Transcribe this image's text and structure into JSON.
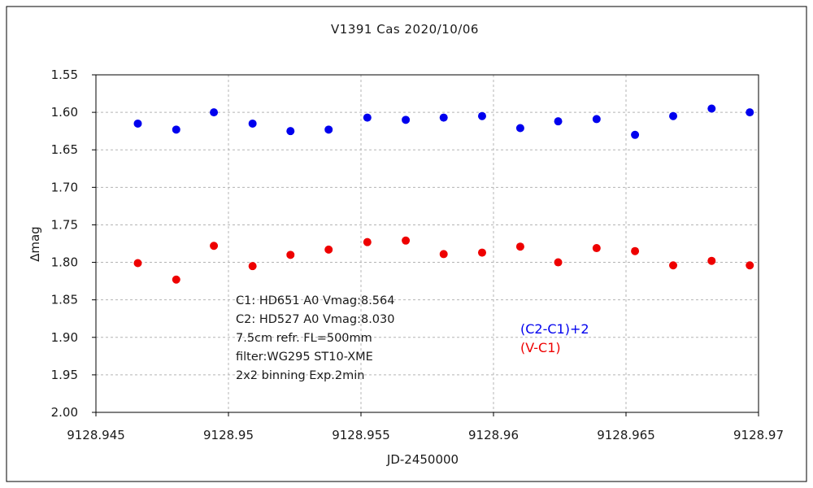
{
  "chart_data": {
    "type": "scatter",
    "title": "V1391 Cas   2020/10/06",
    "xlabel": "JD-2450000",
    "ylabel": "∆mag",
    "xlim": [
      9128.945,
      9128.97
    ],
    "ylim": [
      1.55,
      2.0
    ],
    "y_inverted": true,
    "grid": true,
    "x_ticks": [
      "9128.945",
      "9128.95",
      "9128.955",
      "9128.96",
      "9128.965",
      "9128.97"
    ],
    "x_tick_values": [
      9128.945,
      9128.95,
      9128.955,
      9128.96,
      9128.965,
      9128.97
    ],
    "y_ticks": [
      "1.55",
      "1.60",
      "1.65",
      "1.70",
      "1.75",
      "1.80",
      "1.85",
      "1.90",
      "1.95",
      "2.00"
    ],
    "y_tick_values": [
      1.55,
      1.6,
      1.65,
      1.7,
      1.75,
      1.8,
      1.85,
      1.9,
      1.95,
      2.0
    ],
    "series": [
      {
        "name": "(C2-C1)+2",
        "color": "#0000ee",
        "x": [
          9128.94658,
          9128.94803,
          9128.94945,
          9128.95091,
          9128.95234,
          9128.95378,
          9128.95524,
          9128.95669,
          9128.95812,
          9128.95957,
          9128.96101,
          9128.96244,
          9128.96389,
          9128.96534,
          9128.96678,
          9128.96823,
          9128.96967
        ],
        "y": [
          1.615,
          1.623,
          1.6,
          1.615,
          1.625,
          1.623,
          1.607,
          1.61,
          1.607,
          1.605,
          1.621,
          1.612,
          1.609,
          1.63,
          1.605,
          1.595,
          1.6
        ]
      },
      {
        "name": "(V-C1)",
        "color": "#ee0000",
        "x": [
          9128.94658,
          9128.94803,
          9128.94945,
          9128.95091,
          9128.95234,
          9128.95378,
          9128.95524,
          9128.95669,
          9128.95812,
          9128.95957,
          9128.96101,
          9128.96244,
          9128.96389,
          9128.96534,
          9128.96678,
          9128.96823,
          9128.96967
        ],
        "y": [
          1.801,
          1.823,
          1.778,
          1.805,
          1.79,
          1.783,
          1.773,
          1.771,
          1.789,
          1.787,
          1.779,
          1.8,
          1.781,
          1.785,
          1.804,
          1.798,
          1.804
        ]
      }
    ],
    "annotations": [
      "C1: HD651  A0  Vmag:8.564",
      "C2: HD527  A0   Vmag:8.030",
      "7.5cm refr. FL=500mm",
      "filter:WG295  ST10-XME",
      "2x2 binning  Exp.2min"
    ]
  }
}
